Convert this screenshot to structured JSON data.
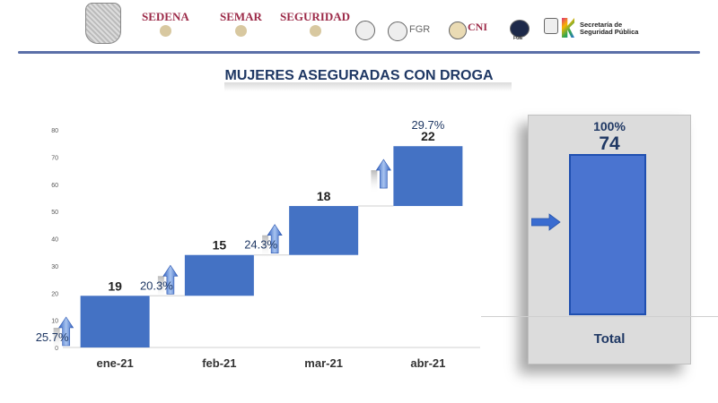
{
  "header": {
    "logos": [
      {
        "name": "SEDENA",
        "color": "#9c2a48"
      },
      {
        "name": "SEMAR",
        "color": "#9c2a48"
      },
      {
        "name": "SEGURIDAD",
        "color": "#9c2a48"
      },
      {
        "name": "FGR",
        "color": "#555555"
      },
      {
        "name": "CNI",
        "color": "#9c2a48"
      },
      {
        "name": "FGE",
        "color": "#333333"
      },
      {
        "name": "Secretaría de Seguridad Pública",
        "color": "#333333"
      }
    ]
  },
  "title": "MUJERES ASEGURADAS CON DROGA",
  "chart_data": {
    "type": "bar",
    "subtype": "waterfall",
    "categories": [
      "ene-21",
      "feb-21",
      "mar-21",
      "abr-21"
    ],
    "values": [
      19,
      15,
      18,
      22
    ],
    "percent_labels": [
      "25.7%",
      "20.3%",
      "24.3%",
      "29.7%"
    ],
    "ylim": [
      0,
      80
    ],
    "yticks": [
      0,
      10,
      20,
      30,
      40,
      50,
      60,
      70,
      80
    ],
    "bar_color": "#4472c4",
    "total": {
      "label": "Total",
      "value": 74,
      "percent": "100%",
      "color": "#4a74d0"
    }
  }
}
